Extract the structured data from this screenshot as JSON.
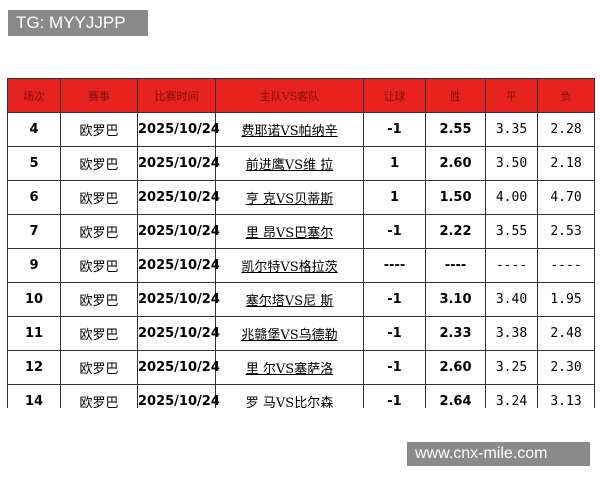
{
  "watermark_top": "TG: MYYJJPP",
  "watermark_bottom": "www.cnx-mile.com",
  "table": {
    "header": [
      "场次",
      "赛事",
      "比赛时间",
      "主队VS客队",
      "让球",
      "胜",
      "平",
      "负"
    ],
    "rows": [
      [
        "4",
        "欧罗巴",
        "2025/10/24",
        "费耶诺VS帕纳辛",
        "-1",
        "2.55",
        "3.35",
        "2.28"
      ],
      [
        "5",
        "欧罗巴",
        "2025/10/24",
        "前进鹰VS维 拉",
        "1",
        "2.60",
        "3.50",
        "2.18"
      ],
      [
        "6",
        "欧罗巴",
        "2025/10/24",
        "亨 克VS贝蒂斯",
        "1",
        "1.50",
        "4.00",
        "4.70"
      ],
      [
        "7",
        "欧罗巴",
        "2025/10/24",
        "里 昂VS巴塞尔",
        "-1",
        "2.22",
        "3.55",
        "2.53"
      ],
      [
        "9",
        "欧罗巴",
        "2025/10/24",
        "凯尔特VS格拉茨",
        "----",
        "----",
        "----",
        "----"
      ],
      [
        "10",
        "欧罗巴",
        "2025/10/24",
        "塞尔塔VS尼 斯",
        "-1",
        "3.10",
        "3.40",
        "1.95"
      ],
      [
        "11",
        "欧罗巴",
        "2025/10/24",
        "兆赣堡VS乌德勒",
        "-1",
        "2.33",
        "3.38",
        "2.48"
      ],
      [
        "12",
        "欧罗巴",
        "2025/10/24",
        "里 尔VS塞萨洛",
        "-1",
        "2.60",
        "3.25",
        "2.30"
      ],
      [
        "14",
        "欧罗巴",
        "2025/10/24",
        "罗 马VS比尔森",
        "-1",
        "2.64",
        "3.24",
        "3.13"
      ]
    ]
  }
}
